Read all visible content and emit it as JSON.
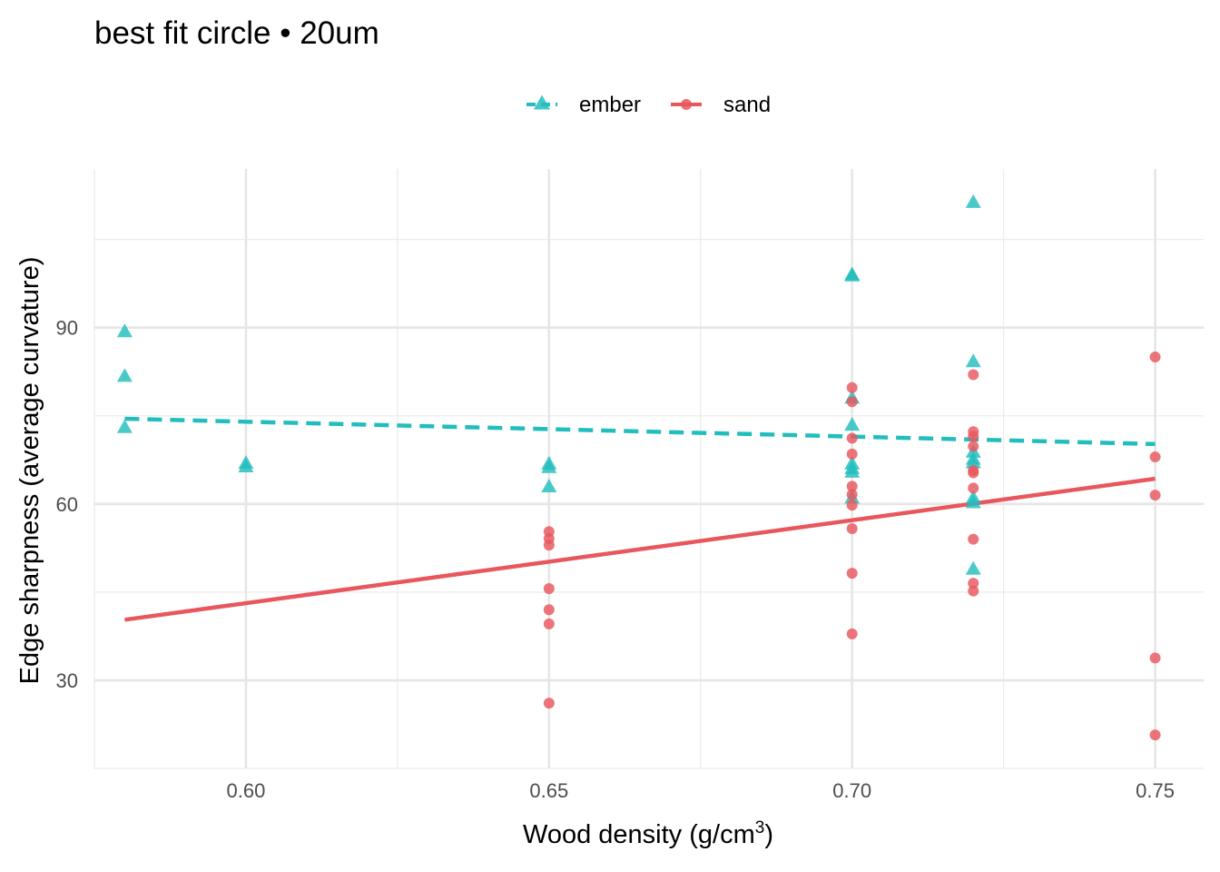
{
  "chart_data": {
    "type": "scatter",
    "title": "best fit circle • 20um",
    "xlabel": "Wood density (g/cm",
    "xlabel_sup": "3",
    "xlabel_suffix": ")",
    "ylabel": "Edge sharpness (average curvature)",
    "xlim": [
      0.575,
      0.758
    ],
    "ylim": [
      15,
      117
    ],
    "x_ticks": [
      0.6,
      0.65,
      0.7,
      0.75
    ],
    "x_tick_labels": [
      "0.60",
      "0.65",
      "0.70",
      "0.75"
    ],
    "x_minor": [
      0.575,
      0.625,
      0.675,
      0.725
    ],
    "y_ticks": [
      30,
      60,
      90
    ],
    "y_tick_labels": [
      "30",
      "60",
      "90"
    ],
    "y_minor": [
      15,
      45,
      75,
      105
    ],
    "grid": true,
    "legend_position": "top",
    "series": [
      {
        "name": "ember",
        "color": "#22BDBD",
        "marker": "triangle",
        "line_style": "dashed",
        "fit": {
          "x": [
            0.58,
            0.75
          ],
          "y": [
            74.5,
            70.2
          ]
        },
        "points": [
          [
            0.58,
            89.3
          ],
          [
            0.58,
            81.7
          ],
          [
            0.58,
            73.0
          ],
          [
            0.6,
            66.9
          ],
          [
            0.6,
            66.3
          ],
          [
            0.65,
            66.8
          ],
          [
            0.65,
            66.2
          ],
          [
            0.65,
            62.9
          ],
          [
            0.7,
            99.0
          ],
          [
            0.7,
            98.8
          ],
          [
            0.7,
            78.0
          ],
          [
            0.7,
            73.4
          ],
          [
            0.7,
            66.8
          ],
          [
            0.7,
            66.0
          ],
          [
            0.7,
            65.4
          ],
          [
            0.7,
            61.0
          ],
          [
            0.72,
            111.3
          ],
          [
            0.72,
            84.2
          ],
          [
            0.72,
            68.8
          ],
          [
            0.72,
            67.6
          ],
          [
            0.72,
            67.0
          ],
          [
            0.72,
            61.0
          ],
          [
            0.72,
            60.2
          ],
          [
            0.72,
            48.9
          ]
        ]
      },
      {
        "name": "sand",
        "color": "#E8575E",
        "marker": "circle",
        "line_style": "solid",
        "fit": {
          "x": [
            0.58,
            0.75
          ],
          "y": [
            40.3,
            64.3
          ]
        },
        "points": [
          [
            0.65,
            55.3
          ],
          [
            0.65,
            54.1
          ],
          [
            0.65,
            53.0
          ],
          [
            0.65,
            45.6
          ],
          [
            0.65,
            42.0
          ],
          [
            0.65,
            39.6
          ],
          [
            0.65,
            26.1
          ],
          [
            0.7,
            79.8
          ],
          [
            0.7,
            77.4
          ],
          [
            0.7,
            71.2
          ],
          [
            0.7,
            68.5
          ],
          [
            0.7,
            63.0
          ],
          [
            0.7,
            61.6
          ],
          [
            0.7,
            59.8
          ],
          [
            0.7,
            55.8
          ],
          [
            0.7,
            48.2
          ],
          [
            0.7,
            37.9
          ],
          [
            0.72,
            82.0
          ],
          [
            0.72,
            72.3
          ],
          [
            0.72,
            71.5
          ],
          [
            0.72,
            69.8
          ],
          [
            0.72,
            65.7
          ],
          [
            0.72,
            65.3
          ],
          [
            0.72,
            62.7
          ],
          [
            0.72,
            54.0
          ],
          [
            0.72,
            46.5
          ],
          [
            0.72,
            45.2
          ],
          [
            0.75,
            85.0
          ],
          [
            0.75,
            68.0
          ],
          [
            0.75,
            61.5
          ],
          [
            0.75,
            33.8
          ],
          [
            0.75,
            20.7
          ]
        ]
      }
    ]
  }
}
